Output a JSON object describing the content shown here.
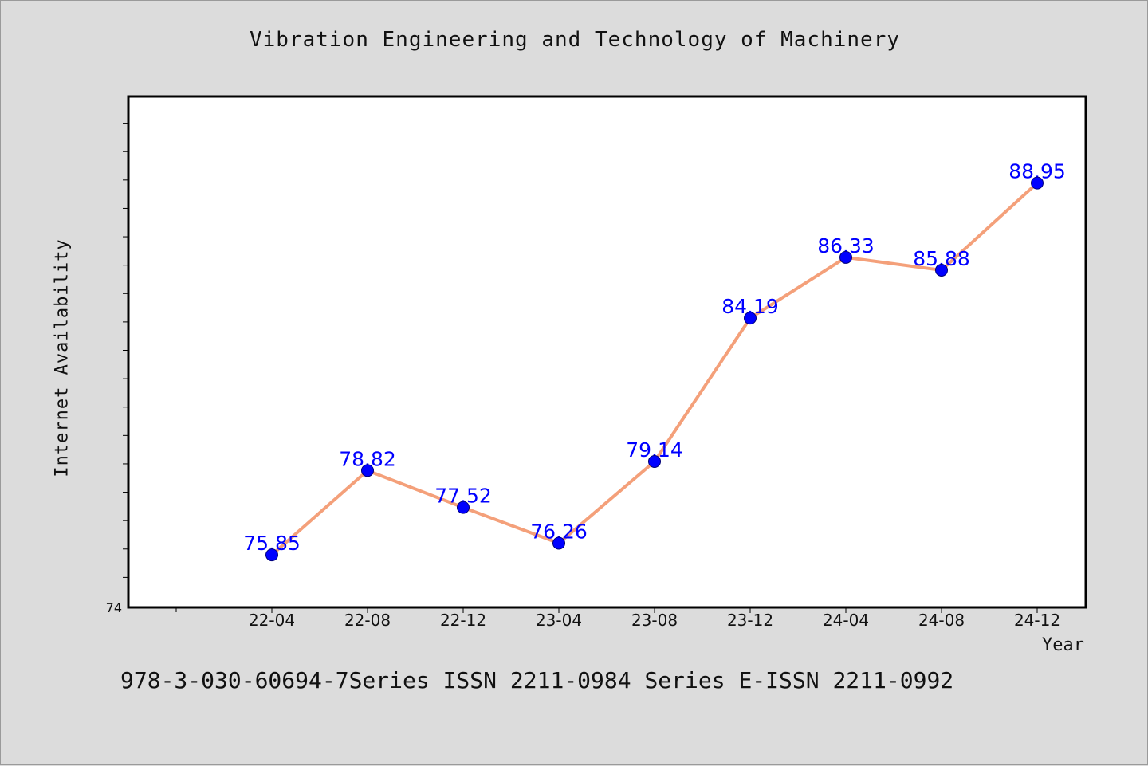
{
  "chart_data": {
    "type": "line",
    "title": "Vibration Engineering and Technology of Machinery",
    "xlabel": "Year",
    "ylabel": "Internet Availability",
    "categories": [
      "22-04",
      "22-08",
      "22-12",
      "23-04",
      "23-08",
      "23-12",
      "24-04",
      "24-08",
      "24-12"
    ],
    "series": [
      {
        "values": [
          75.85,
          78.82,
          77.52,
          76.26,
          79.14,
          84.19,
          86.33,
          85.88,
          88.95
        ],
        "labels": [
          "75.85",
          "78.82",
          "77.52",
          "76.26",
          "79.14",
          "84.19",
          "86.33",
          "85.88",
          "88.95"
        ],
        "line_color": "#f4a07a",
        "marker_color": "#0000ff"
      }
    ],
    "ylim": [
      74,
      92
    ],
    "y_tick_labels": [
      "74"
    ],
    "grid": false,
    "plot_background": "#ffffff",
    "page_background": "#dcdcdc"
  },
  "footer": {
    "text": "978-3-030-60694-7Series ISSN 2211-0984 Series E-ISSN 2211-0992"
  }
}
